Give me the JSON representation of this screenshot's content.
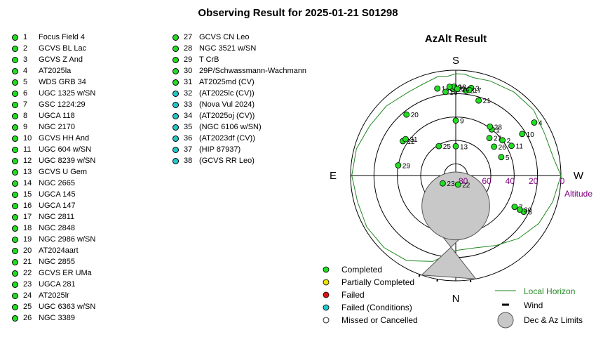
{
  "title": "Observing Result for 2025-01-21 S01298",
  "targets": [
    {
      "num": "1",
      "name": "Focus Field 4",
      "status": "completed"
    },
    {
      "num": "2",
      "name": "GCVS BL Lac",
      "status": "completed"
    },
    {
      "num": "3",
      "name": "GCVS Z And",
      "status": "completed"
    },
    {
      "num": "4",
      "name": "AT2025la",
      "status": "completed"
    },
    {
      "num": "5",
      "name": "WDS GRB 34",
      "status": "completed"
    },
    {
      "num": "6",
      "name": "UGC 1325 w/SN",
      "status": "completed"
    },
    {
      "num": "7",
      "name": "GSC 1224:29",
      "status": "completed"
    },
    {
      "num": "8",
      "name": "UGCA 118",
      "status": "completed"
    },
    {
      "num": "9",
      "name": "NGC 2170",
      "status": "completed"
    },
    {
      "num": "10",
      "name": "GCVS HH And",
      "status": "completed"
    },
    {
      "num": "11",
      "name": "UGC 604 w/SN",
      "status": "completed"
    },
    {
      "num": "12",
      "name": "UGC 8239 w/SN",
      "status": "completed"
    },
    {
      "num": "13",
      "name": "GCVS U Gem",
      "status": "completed"
    },
    {
      "num": "14",
      "name": "NGC 2665",
      "status": "completed"
    },
    {
      "num": "15",
      "name": "UGCA 145",
      "status": "completed"
    },
    {
      "num": "16",
      "name": "UGCA 147",
      "status": "completed"
    },
    {
      "num": "17",
      "name": "NGC 2811",
      "status": "completed"
    },
    {
      "num": "18",
      "name": "NGC 2848",
      "status": "completed"
    },
    {
      "num": "19",
      "name": "NGC 2986 w/SN",
      "status": "completed"
    },
    {
      "num": "20",
      "name": "AT2024aart",
      "status": "completed"
    },
    {
      "num": "21",
      "name": "NGC 2855",
      "status": "completed"
    },
    {
      "num": "22",
      "name": "GCVS ER UMa",
      "status": "completed"
    },
    {
      "num": "23",
      "name": "UGCA 281",
      "status": "completed"
    },
    {
      "num": "24",
      "name": "AT2025lr",
      "status": "completed"
    },
    {
      "num": "25",
      "name": "UGC 6363 w/SN",
      "status": "completed"
    },
    {
      "num": "26",
      "name": "NGC 3389",
      "status": "completed"
    },
    {
      "num": "27",
      "name": "GCVS CN Leo",
      "status": "completed"
    },
    {
      "num": "28",
      "name": "NGC 3521 w/SN",
      "status": "completed"
    },
    {
      "num": "29",
      "name": "T CrB",
      "status": "completed"
    },
    {
      "num": "30",
      "name": "29P/Schwassmann-Wachmann",
      "status": "completed"
    },
    {
      "num": "31",
      "name": "AT2025md (CV)",
      "status": "completed"
    },
    {
      "num": "32",
      "name": "(AT2025lc (CV))",
      "status": "failed_conditions"
    },
    {
      "num": "33",
      "name": "(Nova Vul 2024)",
      "status": "failed_conditions"
    },
    {
      "num": "34",
      "name": "(AT2025oj (CV))",
      "status": "failed_conditions"
    },
    {
      "num": "35",
      "name": "(NGC 6106 w/SN)",
      "status": "failed_conditions"
    },
    {
      "num": "36",
      "name": "(AT2023df (CV))",
      "status": "failed_conditions"
    },
    {
      "num": "37",
      "name": "(HIP 87937)",
      "status": "failed_conditions"
    },
    {
      "num": "38",
      "name": "(GCVS RR Leo)",
      "status": "failed_conditions"
    }
  ],
  "status_colors": {
    "completed": "#22dd22",
    "partially_completed": "#f0e000",
    "failed": "#dd1111",
    "failed_conditions": "#22c8c8",
    "missed": "#ffffff"
  },
  "chart_data": {
    "type": "scatter",
    "projection": "polar-azalt",
    "title": "AzAlt Result",
    "compass": {
      "top": "S",
      "bottom": "N",
      "left": "E",
      "right": "W"
    },
    "altitude_label": "Altitude",
    "altitude_ticks": [
      0,
      20,
      40,
      60,
      80
    ],
    "grid": true,
    "points": [
      {
        "label": "1",
        "az": 218,
        "alt": 40
      },
      {
        "label": "2",
        "az": 233,
        "alt": 40
      },
      {
        "label": "3",
        "az": 190,
        "alt": 14
      },
      {
        "label": "4",
        "az": 236,
        "alt": 9
      },
      {
        "label": "5",
        "az": 248,
        "alt": 48
      },
      {
        "label": "6",
        "az": 298,
        "alt": 24
      },
      {
        "label": "7",
        "az": 298,
        "alt": 33
      },
      {
        "label": "8",
        "az": 187,
        "alt": 17
      },
      {
        "label": "9",
        "az": 180,
        "alt": 43
      },
      {
        "label": "10",
        "az": 238,
        "alt": 23
      },
      {
        "label": "11",
        "az": 242,
        "alt": 36
      },
      {
        "label": "12",
        "az": 123,
        "alt": 36
      },
      {
        "label": "13",
        "az": 180,
        "alt": 65
      },
      {
        "label": "14",
        "az": 168,
        "alt": 14
      },
      {
        "label": "15",
        "az": 178,
        "alt": 16
      },
      {
        "label": "16",
        "az": 173,
        "alt": 18
      },
      {
        "label": "17",
        "az": 189,
        "alt": 16
      },
      {
        "label": "18",
        "az": 179,
        "alt": 14
      },
      {
        "label": "19",
        "az": 176,
        "alt": 14
      },
      {
        "label": "20",
        "az": 141,
        "alt": 23
      },
      {
        "label": "21",
        "az": 197,
        "alt": 23
      },
      {
        "label": "22",
        "az": 346,
        "alt": 82
      },
      {
        "label": "23",
        "az": 59,
        "alt": 77
      },
      {
        "label": "24",
        "az": 181,
        "alt": 16
      },
      {
        "label": "25",
        "az": 150,
        "alt": 61
      },
      {
        "label": "26",
        "az": 233,
        "alt": 49
      },
      {
        "label": "27",
        "az": 222,
        "alt": 47
      },
      {
        "label": "28",
        "az": 215,
        "alt": 39
      },
      {
        "label": "29",
        "az": 100,
        "alt": 40
      },
      {
        "label": "30",
        "az": 298,
        "alt": 28
      },
      {
        "label": "31",
        "az": 126,
        "alt": 37
      }
    ],
    "dec_az_limits": {
      "circle_center_alt": 64,
      "circle_center_az": 0,
      "circle_radius_alt": 29,
      "wedge_az": [
        -11,
        19
      ]
    },
    "local_horizon": [
      [
        0,
        26
      ],
      [
        15,
        14
      ],
      [
        30,
        6
      ],
      [
        45,
        3
      ],
      [
        60,
        2
      ],
      [
        75,
        3
      ],
      [
        90,
        1
      ],
      [
        105,
        2
      ],
      [
        120,
        5
      ],
      [
        135,
        6
      ],
      [
        150,
        8
      ],
      [
        160,
        7
      ],
      [
        170,
        4
      ],
      [
        175,
        5
      ],
      [
        180,
        3
      ],
      [
        185,
        3
      ],
      [
        190,
        5
      ],
      [
        200,
        4
      ],
      [
        215,
        3
      ],
      [
        230,
        3
      ],
      [
        245,
        6
      ],
      [
        260,
        5
      ],
      [
        270,
        0
      ],
      [
        285,
        4
      ],
      [
        300,
        8
      ],
      [
        315,
        14
      ],
      [
        330,
        21
      ],
      [
        345,
        26
      ],
      [
        360,
        26
      ]
    ],
    "legend": [
      {
        "label": "Completed",
        "key": "completed"
      },
      {
        "label": "Partially Completed",
        "key": "partially_completed"
      },
      {
        "label": "Failed",
        "key": "failed"
      },
      {
        "label": "Failed (Conditions)",
        "key": "failed_conditions"
      },
      {
        "label": "Missed or Cancelled",
        "key": "missed"
      }
    ],
    "legend_right": {
      "horizon": "Local Horizon",
      "wind": "Wind",
      "limits": "Dec & Az Limits"
    }
  }
}
